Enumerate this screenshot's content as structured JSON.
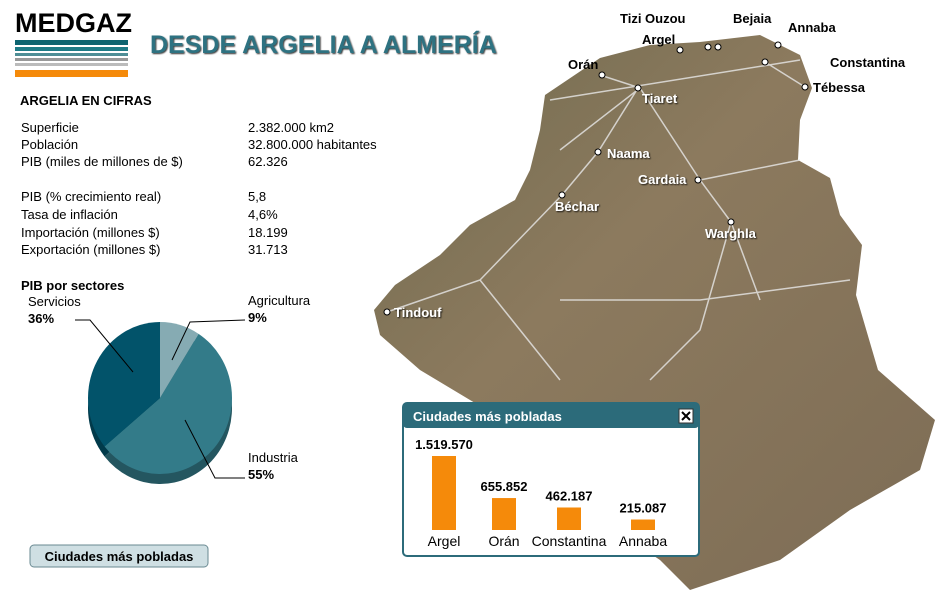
{
  "header": {
    "logo": "MEDGAZ",
    "title": "DESDE ARGELIA A ALMERÍA"
  },
  "stats": {
    "title": "ARGELIA EN CIFRAS",
    "rows": [
      [
        "Superficie",
        "2.382.000 km2"
      ],
      [
        "Población",
        "32.800.000 habitantes"
      ],
      [
        "PIB (miles de millones de $)",
        "62.326"
      ],
      [
        "PIB (% crecimiento real)",
        "5,8"
      ],
      [
        "Tasa de inflación",
        "4,6%"
      ],
      [
        "Importación (millones $)",
        "18.199"
      ],
      [
        "Exportación (millones $)",
        "31.713"
      ]
    ]
  },
  "chart_data": [
    {
      "type": "pie",
      "title": "PIB por sectores",
      "categories": [
        "Agricultura",
        "Industria",
        "Servicios"
      ],
      "values": [
        9,
        55,
        36
      ],
      "value_labels": [
        "9%",
        "55%",
        "36%"
      ],
      "colors": [
        "#86abb3",
        "#337b89",
        "#02536a"
      ]
    },
    {
      "type": "bar",
      "title": "Ciudades más pobladas",
      "categories": [
        "Argel",
        "Orán",
        "Constantina",
        "Annaba"
      ],
      "values": [
        1519570,
        655852,
        462187,
        215087
      ],
      "value_labels": [
        "1.519.570",
        "655.852",
        "462.187",
        "215.087"
      ],
      "color": "#f58a0a"
    }
  ],
  "map": {
    "cities": [
      "Tizi Ouzou",
      "Bejaia",
      "Annaba",
      "Argel",
      "Orán",
      "Constantina",
      "Tébessa",
      "Tiaret",
      "Naama",
      "Gardaia",
      "Béchar",
      "Warghla",
      "Tindouf"
    ]
  },
  "button": "Ciudades más pobladas"
}
